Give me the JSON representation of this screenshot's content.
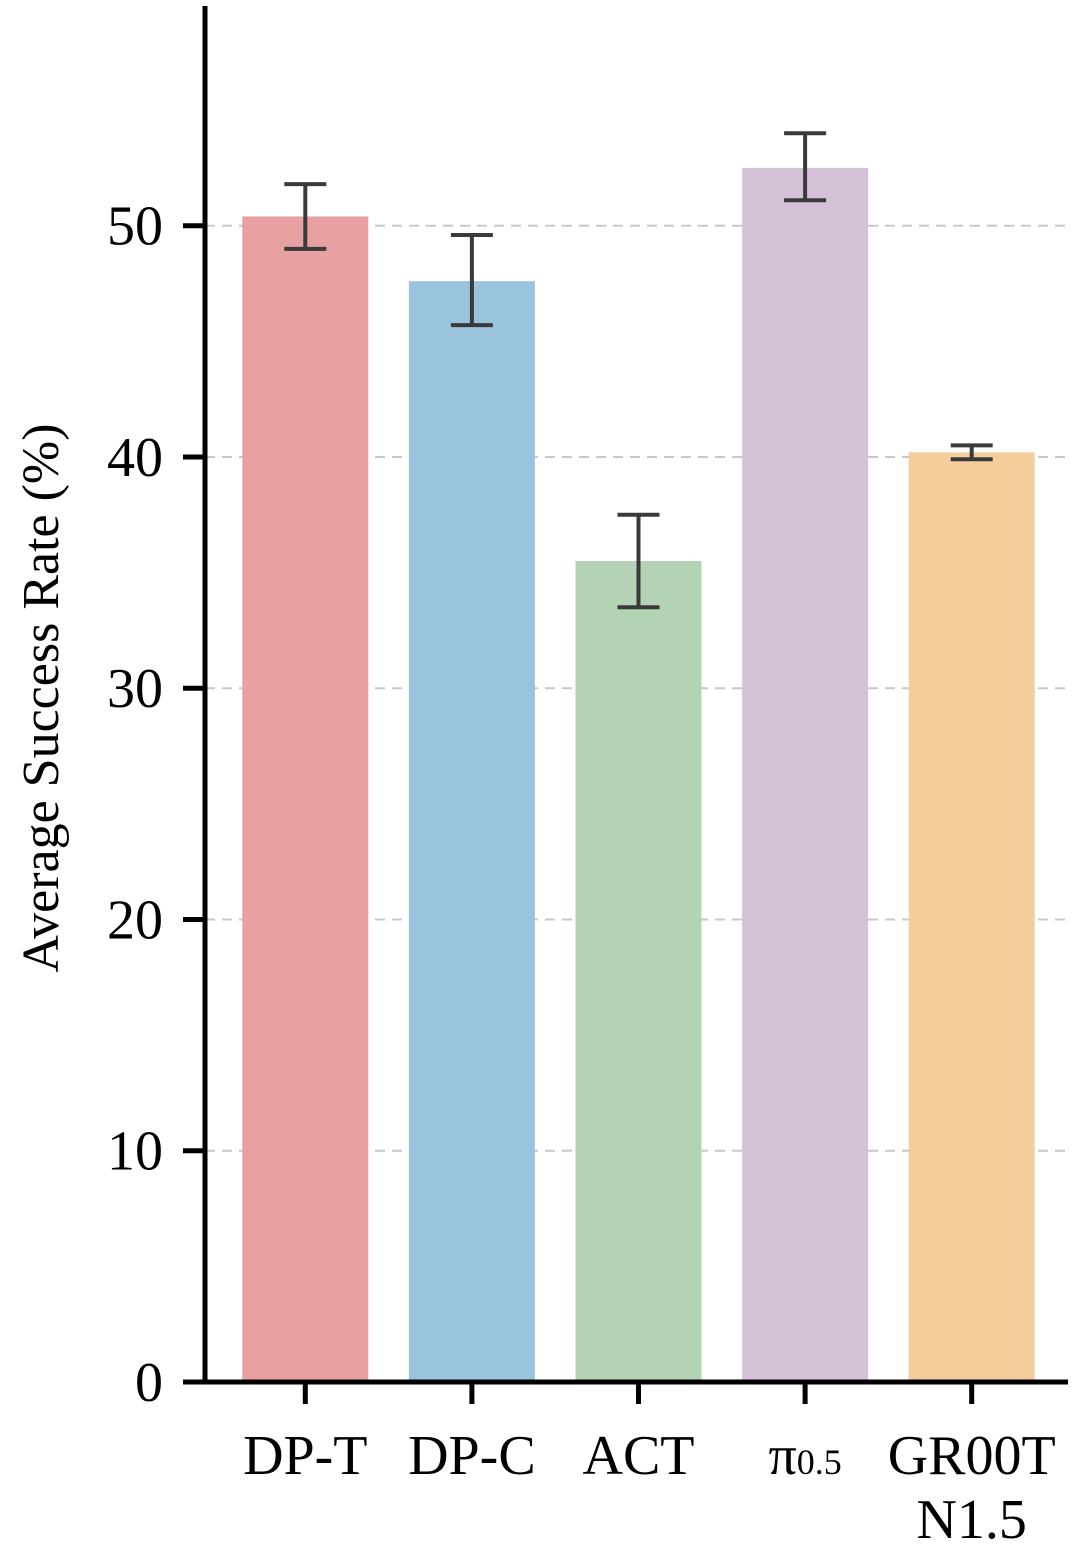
{
  "chart_data": {
    "type": "bar",
    "title": "",
    "xlabel": "",
    "ylabel": "Average Success Rate (%)",
    "ylim": [
      0,
      59.5
    ],
    "yticks": [
      0,
      10,
      20,
      30,
      40,
      50
    ],
    "grid": "horizontal dashed",
    "categories": [
      {
        "lines": [
          "DP-T"
        ]
      },
      {
        "lines": [
          "DP-C"
        ]
      },
      {
        "lines": [
          "ACT"
        ]
      },
      {
        "lines": [
          "π"
        ],
        "subscript": "0.5"
      },
      {
        "lines": [
          "GR00T",
          "N1.5"
        ]
      }
    ],
    "values": [
      50.4,
      47.6,
      35.5,
      52.5,
      40.2
    ],
    "error_low": [
      49.0,
      45.7,
      33.5,
      51.1,
      39.9
    ],
    "error_high": [
      51.8,
      49.6,
      37.5,
      54.0,
      40.5
    ],
    "colors": [
      "#E8A0A1",
      "#9AC4DE",
      "#B4D3B5",
      "#D6C2D8",
      "#F4CD9A"
    ],
    "errorbar_color": "#3A3A3A"
  }
}
